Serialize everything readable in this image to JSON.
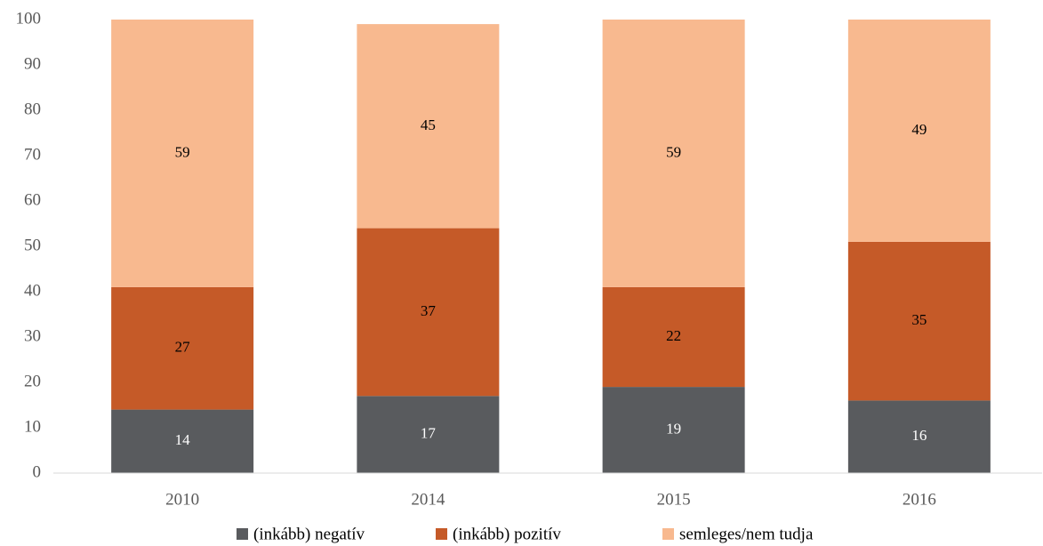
{
  "chart_data": {
    "type": "stacked_bar",
    "categories": [
      "2010",
      "2014",
      "2015",
      "2016"
    ],
    "series": [
      {
        "name": "(inkább) negatív",
        "color": "#595b5e",
        "values": [
          14,
          17,
          19,
          16
        ]
      },
      {
        "name": "(inkább) pozitív",
        "color": "#c55a28",
        "values": [
          27,
          37,
          22,
          35
        ]
      },
      {
        "name": "semleges/nem tudja",
        "color": "#f8b98f",
        "values": [
          59,
          45,
          59,
          49
        ]
      }
    ],
    "ylim": [
      0,
      100
    ],
    "yticks": [
      0,
      10,
      20,
      30,
      40,
      50,
      60,
      70,
      80,
      90,
      100
    ],
    "grid": false,
    "legend": "bottom"
  }
}
